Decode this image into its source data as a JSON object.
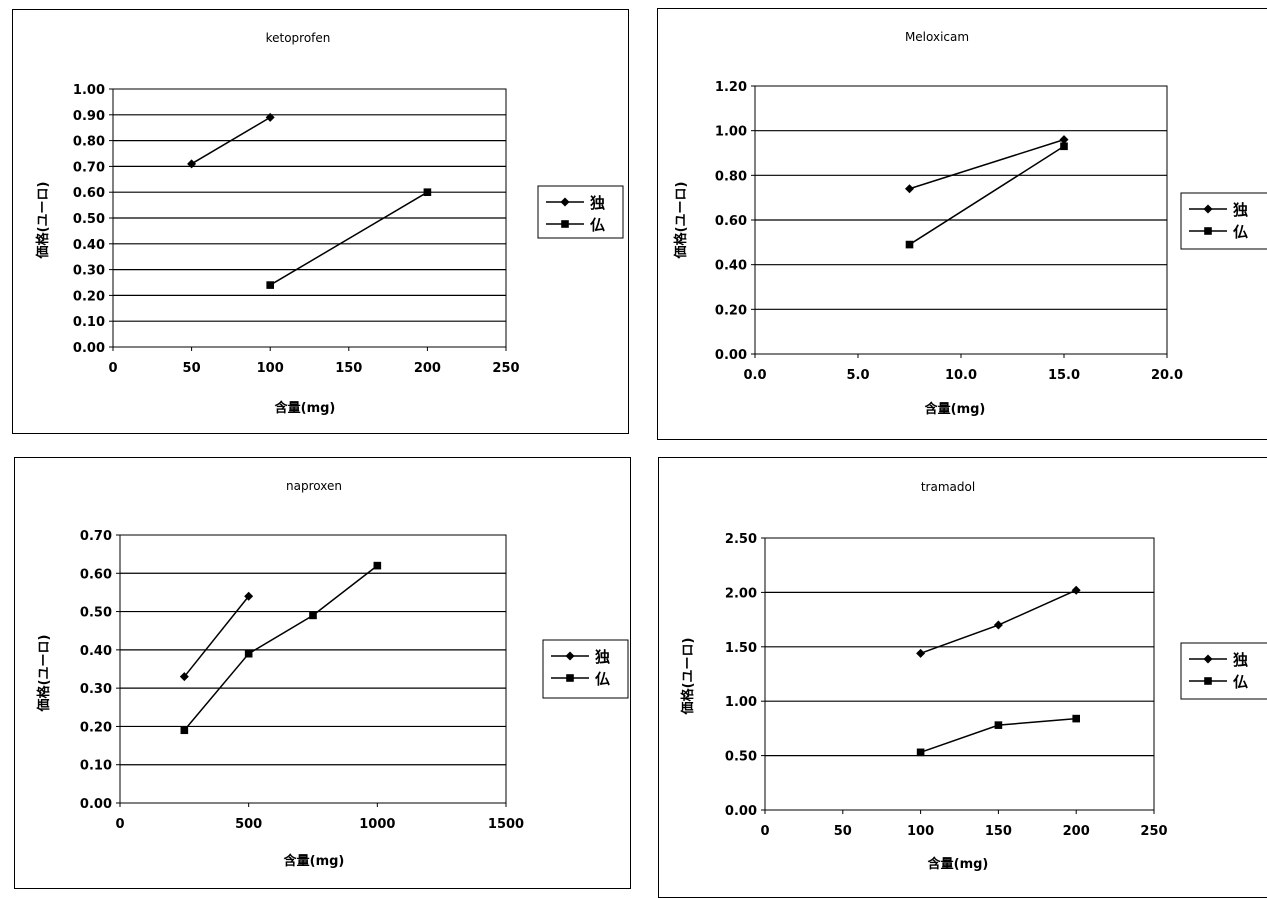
{
  "chart_data": [
    {
      "type": "line",
      "title": "ketoprofen",
      "xlabel": "含量(mg)",
      "ylabel": "価格(ユーロ)",
      "xlim": [
        0,
        250
      ],
      "ylim": [
        0,
        1.0
      ],
      "xticks": [
        "0",
        "50",
        "100",
        "150",
        "200",
        "250"
      ],
      "yticks": [
        "0.00",
        "0.10",
        "0.20",
        "0.30",
        "0.40",
        "0.50",
        "0.60",
        "0.70",
        "0.80",
        "0.90",
        "1.00"
      ],
      "grid": true,
      "legend": "right",
      "series": [
        {
          "name": "独",
          "marker": "diamond",
          "points": [
            [
              50,
              0.71
            ],
            [
              100,
              0.89
            ]
          ]
        },
        {
          "name": "仏",
          "marker": "square",
          "points": [
            [
              100,
              0.24
            ],
            [
              200,
              0.6
            ]
          ]
        }
      ]
    },
    {
      "type": "line",
      "title": "Meloxicam",
      "xlabel": "含量(mg)",
      "ylabel": "価格(ユーロ)",
      "xlim": [
        0,
        20
      ],
      "ylim": [
        0,
        1.2
      ],
      "xticks": [
        "0.0",
        "5.0",
        "10.0",
        "15.0",
        "20.0"
      ],
      "yticks": [
        "0.00",
        "0.20",
        "0.40",
        "0.60",
        "0.80",
        "1.00",
        "1.20"
      ],
      "grid": true,
      "legend": "right",
      "series": [
        {
          "name": "独",
          "marker": "diamond",
          "points": [
            [
              7.5,
              0.74
            ],
            [
              15,
              0.96
            ]
          ]
        },
        {
          "name": "仏",
          "marker": "square",
          "points": [
            [
              7.5,
              0.49
            ],
            [
              15,
              0.93
            ]
          ]
        }
      ]
    },
    {
      "type": "line",
      "title": "naproxen",
      "xlabel": "含量(mg)",
      "ylabel": "価格(ユーロ)",
      "xlim": [
        0,
        1500
      ],
      "ylim": [
        0,
        0.7
      ],
      "xticks": [
        "0",
        "500",
        "1000",
        "1500"
      ],
      "yticks": [
        "0.00",
        "0.10",
        "0.20",
        "0.30",
        "0.40",
        "0.50",
        "0.60",
        "0.70"
      ],
      "grid": true,
      "legend": "right",
      "series": [
        {
          "name": "独",
          "marker": "diamond",
          "points": [
            [
              250,
              0.33
            ],
            [
              500,
              0.54
            ]
          ]
        },
        {
          "name": "仏",
          "marker": "square",
          "points": [
            [
              250,
              0.19
            ],
            [
              500,
              0.39
            ],
            [
              750,
              0.49
            ],
            [
              1000,
              0.62
            ]
          ]
        }
      ]
    },
    {
      "type": "line",
      "title": "tramadol",
      "xlabel": "含量(mg)",
      "ylabel": "価格(ユーロ)",
      "xlim": [
        0,
        250
      ],
      "ylim": [
        0,
        2.5
      ],
      "xticks": [
        "0",
        "50",
        "100",
        "150",
        "200",
        "250"
      ],
      "yticks": [
        "0.00",
        "0.50",
        "1.00",
        "1.50",
        "2.00",
        "2.50"
      ],
      "grid": true,
      "legend": "right",
      "series": [
        {
          "name": "独",
          "marker": "diamond",
          "points": [
            [
              100,
              1.44
            ],
            [
              150,
              1.7
            ],
            [
              200,
              2.02
            ]
          ]
        },
        {
          "name": "仏",
          "marker": "square",
          "points": [
            [
              100,
              0.53
            ],
            [
              150,
              0.78
            ],
            [
              200,
              0.84
            ]
          ]
        }
      ]
    }
  ]
}
